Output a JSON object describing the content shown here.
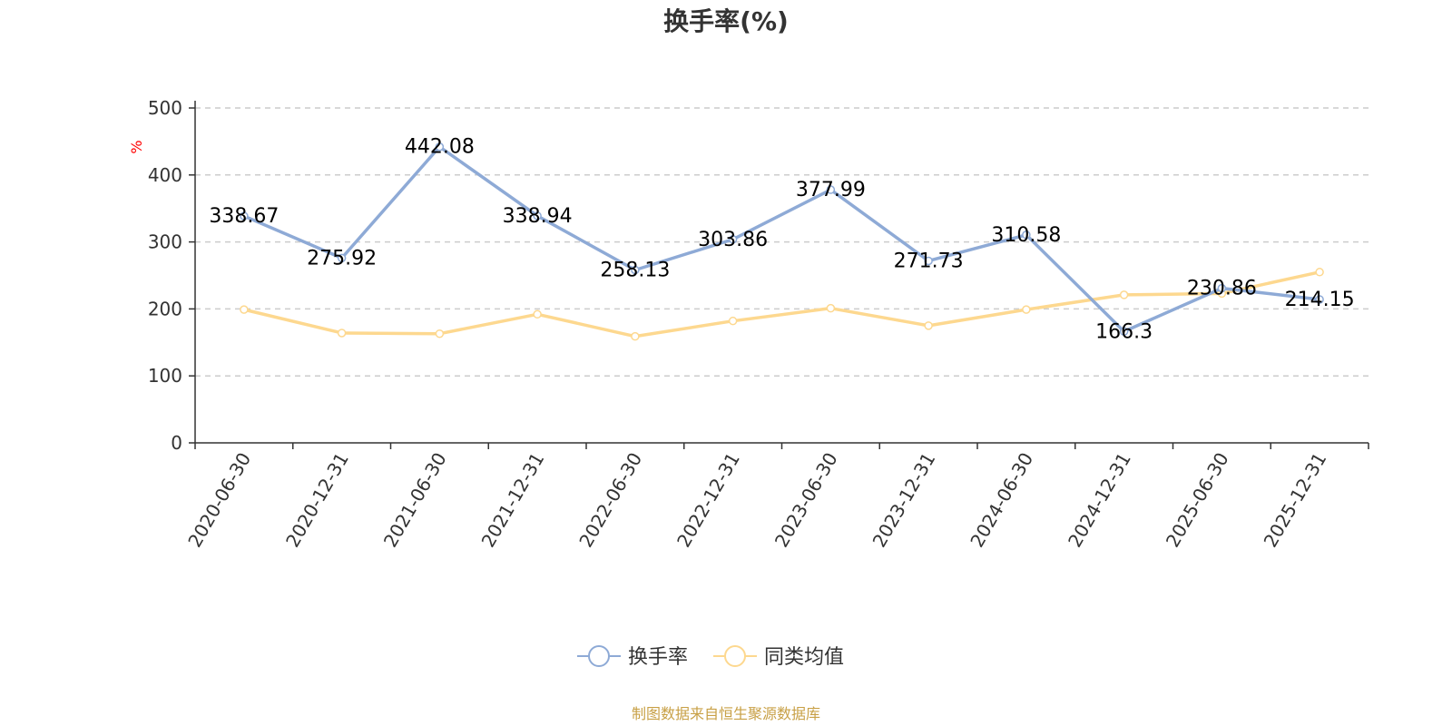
{
  "chart_data": {
    "type": "line",
    "title": "换手率(%)",
    "ylabel": "%",
    "ylim": [
      0,
      500
    ],
    "yticks": [
      0,
      100,
      200,
      300,
      400,
      500
    ],
    "categories": [
      "2020-06-30",
      "2020-12-31",
      "2021-06-30",
      "2021-12-31",
      "2022-06-30",
      "2022-12-31",
      "2023-06-30",
      "2023-12-31",
      "2024-06-30",
      "2024-12-31",
      "2025-06-30",
      "2025-12-31"
    ],
    "series": [
      {
        "name": "换手率",
        "color": "#8eaad6",
        "values": [
          338.67,
          275.92,
          442.08,
          338.94,
          258.13,
          303.86,
          377.99,
          271.73,
          310.58,
          166.3,
          230.86,
          214.15
        ],
        "labels": [
          "338.67",
          "275.92",
          "442.08",
          "338.94",
          "258.13",
          "303.86",
          "377.99",
          "271.73",
          "310.58",
          "166.3",
          "230.86",
          "214.15"
        ]
      },
      {
        "name": "同类均值",
        "color": "#fdd88f",
        "values": [
          199,
          164,
          163,
          192,
          159,
          182,
          201,
          175,
          199,
          221,
          223,
          255
        ]
      }
    ],
    "grid": true,
    "legend": "bottom-center"
  },
  "source": "制图数据来自恒生聚源数据库",
  "colors": {
    "unit": "#ff0000",
    "source": "#c8a046",
    "grid": "#cccccc",
    "axis": "#333333"
  }
}
